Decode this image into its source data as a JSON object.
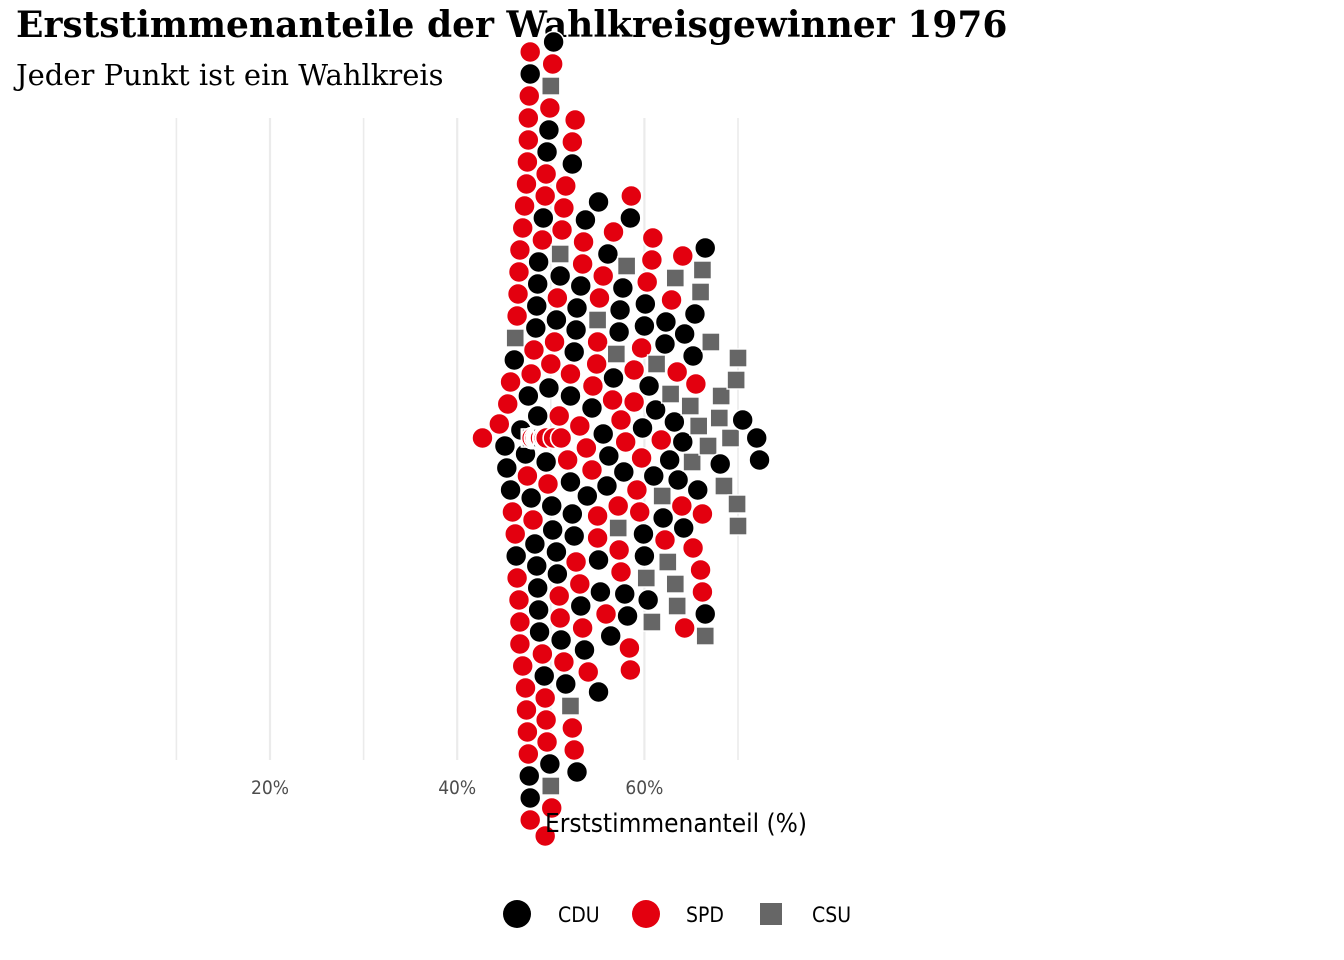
{
  "chart_data": {
    "type": "scatter",
    "subtype": "beeswarm",
    "title": "Erststimmenanteile der Wahlkreisgewinner 1976",
    "subtitle": "Jeder Punkt ist ein Wahlkreis",
    "xlabel": "Erststimmenanteil (%)",
    "xlim": [
      9,
      75
    ],
    "x_ticks": [
      20,
      40,
      60
    ],
    "x_tick_labels": [
      "20%",
      "40%",
      "60%"
    ],
    "grid": "vertical major and minor gridlines",
    "legend_position": "bottom",
    "series": [
      {
        "name": "CDU",
        "color": "#000000",
        "shape": "circle",
        "values": [
          48.5,
          48.0,
          48.7,
          47.3,
          48.5,
          47.9,
          48.8,
          48.3,
          49.5,
          47.8,
          48.5,
          47.6,
          50.3,
          49.6,
          48.6,
          52.1,
          52.8,
          51.1,
          52.7,
          55.1,
          53.9,
          52.1,
          55.6,
          56.7,
          57.9,
          60.4,
          62.2,
          65.7,
          66.5,
          63.2,
          58.5,
          62.3,
          60.1,
          61.2,
          56.2,
          57.7,
          51.0,
          48.7,
          45.1,
          45.7,
          46.1,
          46.8,
          48.6,
          49.3,
          49.8,
          52.5,
          55.3,
          56.4,
          58.2,
          60.0,
          61.0,
          64.1,
          64.3,
          65.2,
          68.1,
          72.3,
          72.0,
          70.5,
          65.4,
          64.2,
          63.6,
          62.7,
          62.0,
          60.5,
          59.8,
          57.3,
          56.1,
          53.7,
          51.1,
          50.6,
          49.8,
          49.2,
          47.8,
          45.3,
          46.3,
          48.3,
          49.2,
          50.1,
          48.4,
          52.3,
          54.4,
          56.0,
          57.8,
          59.9,
          66.5,
          57.4,
          55.1,
          53.2,
          51.6,
          50.7,
          52.8,
          52.3,
          47.7,
          48.0,
          50.2,
          53.2,
          53.6,
          55.1,
          60.0,
          49.9,
          50.6,
          52.5,
          48.6,
          48.0,
          48.5
        ]
      },
      {
        "name": "SPD",
        "color": "#e3000f",
        "shape": "circle",
        "values": [
          49.2,
          47.8,
          48.8,
          50.0,
          47.5,
          49.2,
          48.6,
          47.4,
          47.5,
          49.5,
          48.2,
          50.1,
          51.4,
          47.0,
          47.6,
          49.3,
          50.9,
          52.1,
          52.5,
          51.2,
          46.6,
          49.6,
          53.4,
          53.1,
          47.6,
          48.9,
          51.6,
          50.7,
          54.0,
          54.9,
          55.9,
          57.5,
          58.6,
          59.2,
          62.9,
          64.0,
          65.2,
          61.8,
          58.9,
          57.3,
          55.6,
          53.4,
          51.8,
          50.2,
          49.1,
          47.8,
          46.6,
          46.4,
          48.0,
          49.5,
          50.9,
          52.3,
          55.0,
          57.5,
          59.7,
          64.3,
          66.2,
          66.0,
          65.5,
          60.3,
          58.5,
          56.7,
          55.2,
          53.5,
          51.0,
          49.4,
          48.7,
          47.2,
          45.7,
          44.5,
          42.7,
          45.4,
          46.4,
          48.5,
          49.9,
          52.7,
          54.4,
          57.2,
          58.9,
          60.9,
          63.5,
          66.2,
          64.1,
          59.7,
          58.0,
          55.0,
          53.1,
          51.4,
          49.5,
          48.0,
          47.4,
          46.2,
          45.9,
          47.5,
          49.3,
          51.1,
          52.6,
          53.8,
          55.0,
          56.6,
          58.4,
          59.5,
          62.2,
          60.8,
          54.5,
          52.3,
          50.4,
          48.8,
          47.0,
          46.7,
          46.5,
          47.3,
          48.7,
          50.3,
          49.5,
          46.7,
          49.1,
          47.9,
          46.7,
          49.4,
          48.5,
          49.4,
          49.7,
          47.6,
          48.1,
          48.3,
          48.9,
          47.7,
          48.0
        ]
      },
      {
        "name": "CSU",
        "color": "#666666",
        "shape": "square",
        "values": [
          49.1,
          51.0,
          47.9,
          46.2,
          55.0,
          61.3,
          58.1,
          57.2,
          52.1,
          65.1,
          68.5,
          63.3,
          67.1,
          64.9,
          69.9,
          66.2,
          68.2,
          70.0,
          63.5,
          66.0,
          66.5,
          62.8,
          69.8,
          50.0,
          66.8,
          70.0,
          68.0,
          63.3,
          60.2,
          61.9,
          57.0,
          65.8,
          62.5,
          69.2,
          60.8,
          47.8,
          50.0
        ]
      }
    ]
  },
  "legend": {
    "items": [
      "CDU",
      "SPD",
      "CSU"
    ]
  }
}
